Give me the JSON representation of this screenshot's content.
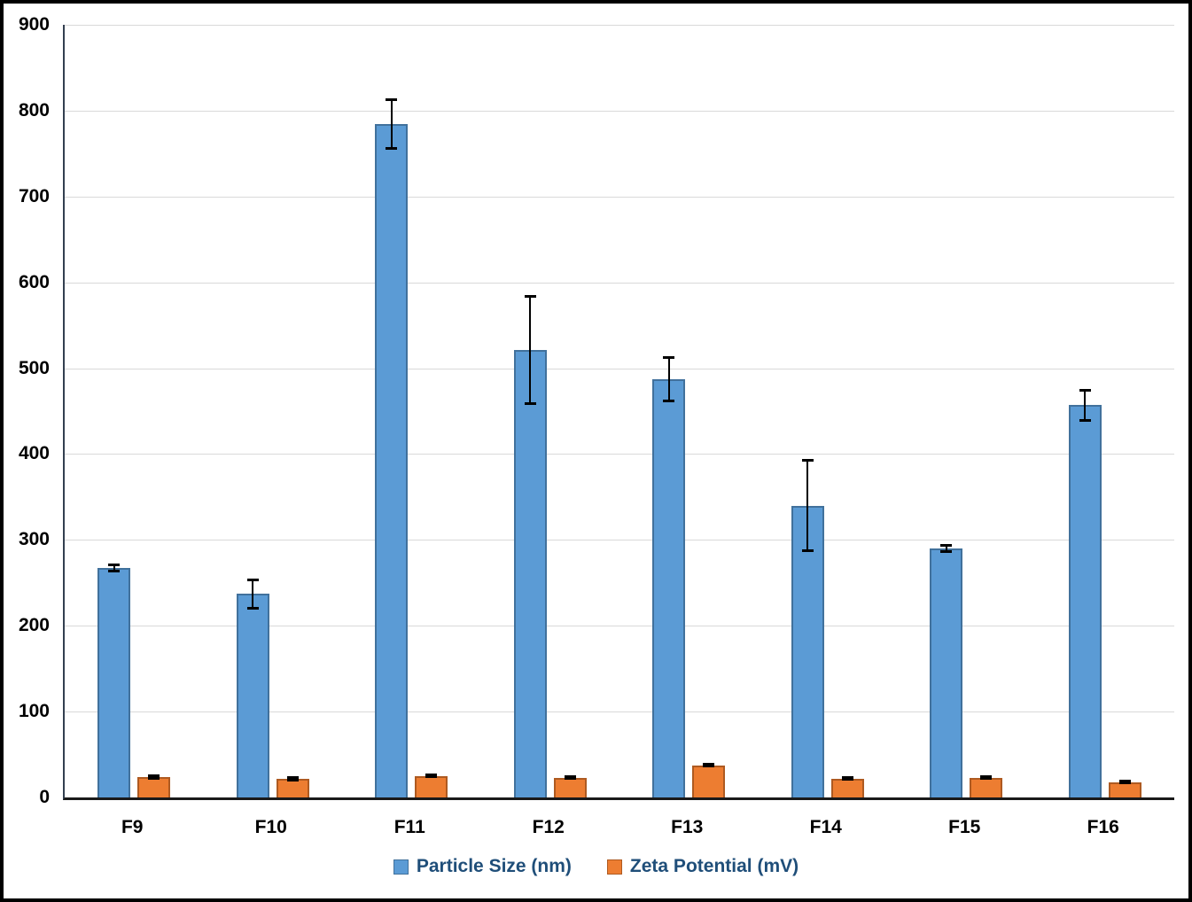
{
  "chart_data": {
    "type": "bar",
    "title": "",
    "xlabel": "",
    "ylabel": "",
    "categories": [
      "F9",
      "F10",
      "F11",
      "F12",
      "F13",
      "F14",
      "F15",
      "F16"
    ],
    "series": [
      {
        "name": "Particle Size (nm)",
        "color": "#5B9BD5",
        "border_color": "#41719C",
        "values": [
          267,
          237,
          784,
          521,
          487,
          340,
          290,
          457
        ],
        "errors": [
          5,
          18,
          30,
          64,
          27,
          54,
          5,
          19
        ]
      },
      {
        "name": "Zeta Potential (mV)",
        "color": "#ED7D31",
        "border_color": "#AE5A21",
        "values": [
          24,
          22,
          25,
          23,
          37,
          22,
          23,
          18
        ],
        "errors": [
          3,
          3,
          2,
          2,
          2,
          2,
          2,
          3
        ]
      }
    ],
    "ylim": [
      0,
      900
    ],
    "ytick_step": 100,
    "grid": true,
    "legend_position": "bottom",
    "error_bar_color": "#000000",
    "gridline_color": "#D9D9D9",
    "axis_line_color": "#333F50",
    "legend_text_color": "#1F4E79"
  }
}
